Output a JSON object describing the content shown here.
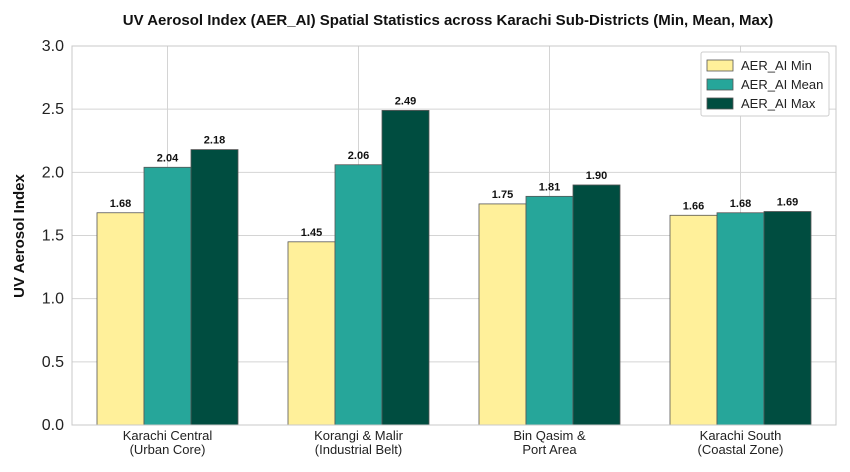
{
  "chart_data": {
    "type": "bar",
    "title": "UV Aerosol Index (AER_AI) Spatial Statistics across Karachi Sub-Districts (Min, Mean, Max)",
    "xlabel": "",
    "ylabel": "UV Aerosol Index",
    "ylim": [
      0,
      3.0
    ],
    "yticks": [
      "0.0",
      "0.5",
      "1.0",
      "1.5",
      "2.0",
      "2.5",
      "3.0"
    ],
    "categories": [
      [
        "Karachi Central",
        "(Urban Core)"
      ],
      [
        "Korangi & Malir",
        "(Industrial Belt)"
      ],
      [
        "Bin Qasim &",
        "Port Area"
      ],
      [
        "Karachi South",
        "(Coastal Zone)"
      ]
    ],
    "series": [
      {
        "name": "AER_AI Min",
        "color": "#fff09a",
        "values": [
          1.68,
          1.45,
          1.75,
          1.66
        ],
        "labels": [
          "1.68",
          "1.45",
          "1.75",
          "1.66"
        ]
      },
      {
        "name": "AER_AI Mean",
        "color": "#26a69a",
        "values": [
          2.04,
          2.06,
          1.81,
          1.68
        ],
        "labels": [
          "2.04",
          "2.06",
          "1.81",
          "1.68"
        ]
      },
      {
        "name": "AER_AI Max",
        "color": "#004d40",
        "values": [
          2.18,
          2.49,
          1.9,
          1.69
        ],
        "labels": [
          "2.18",
          "2.49",
          "1.90",
          "1.69"
        ]
      }
    ],
    "grid": true,
    "legend": "top-right"
  }
}
